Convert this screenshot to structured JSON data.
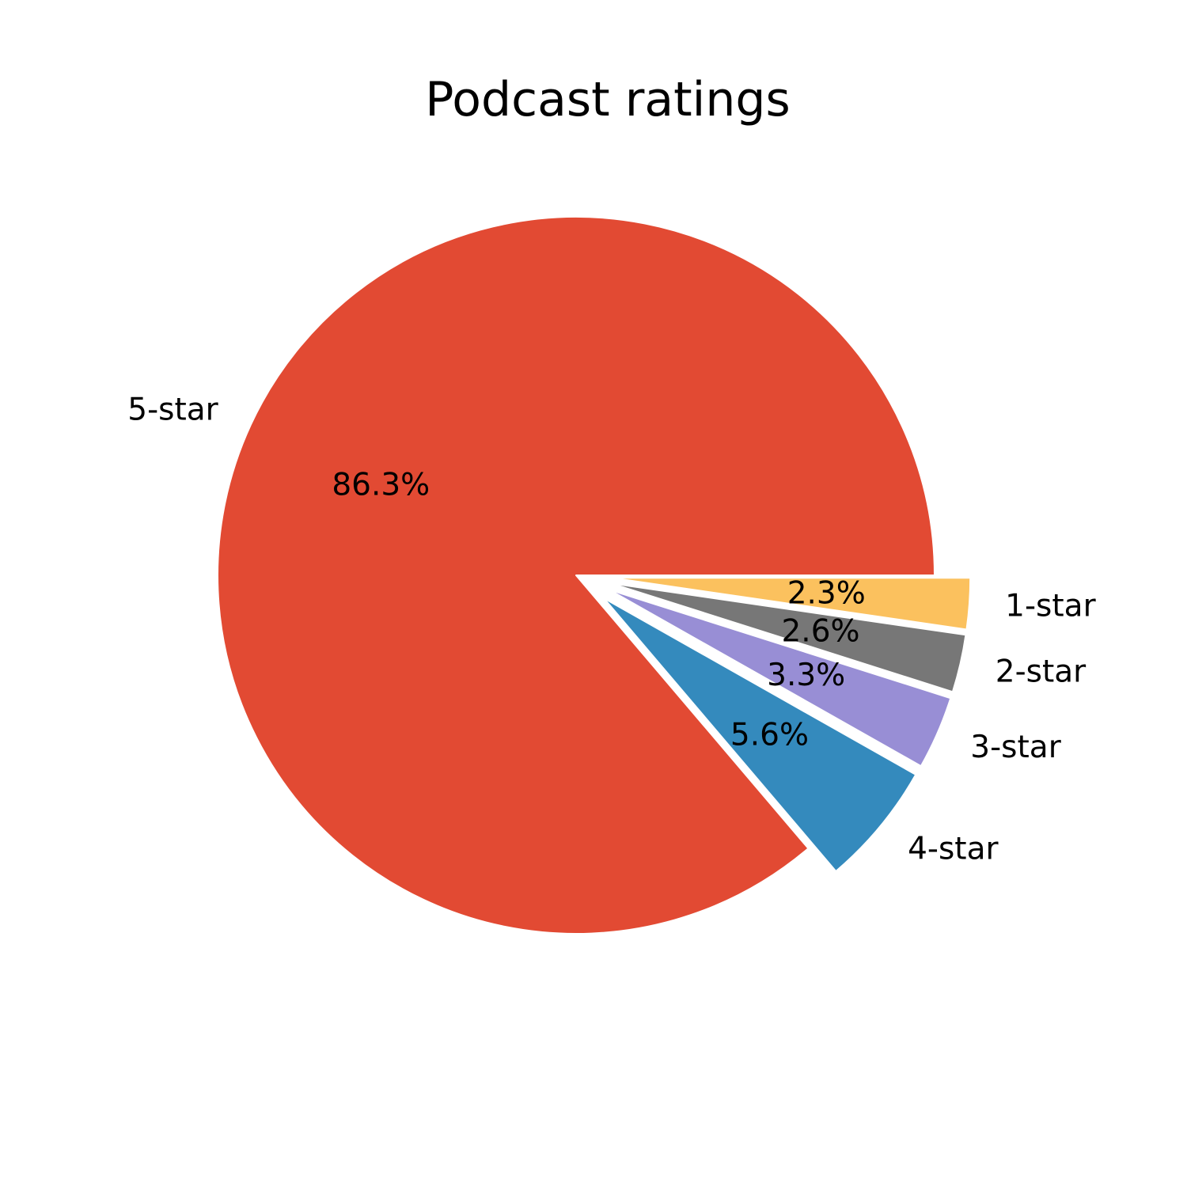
{
  "chart_data": {
    "type": "pie",
    "title": "Podcast ratings",
    "categories": [
      "5-star",
      "4-star",
      "3-star",
      "2-star",
      "1-star"
    ],
    "values": [
      86.3,
      5.6,
      3.3,
      2.6,
      2.3
    ],
    "value_labels": [
      "86.3%",
      "5.6%",
      "3.3%",
      "2.6%",
      "2.3%"
    ],
    "explode": [
      0,
      0.1,
      0.1,
      0.1,
      0.1
    ],
    "colors": [
      "#E24A33",
      "#348ABD",
      "#988ED5",
      "#777777",
      "#FBC15E"
    ],
    "start_angle_deg": 0,
    "direction": "counterclockwise"
  }
}
